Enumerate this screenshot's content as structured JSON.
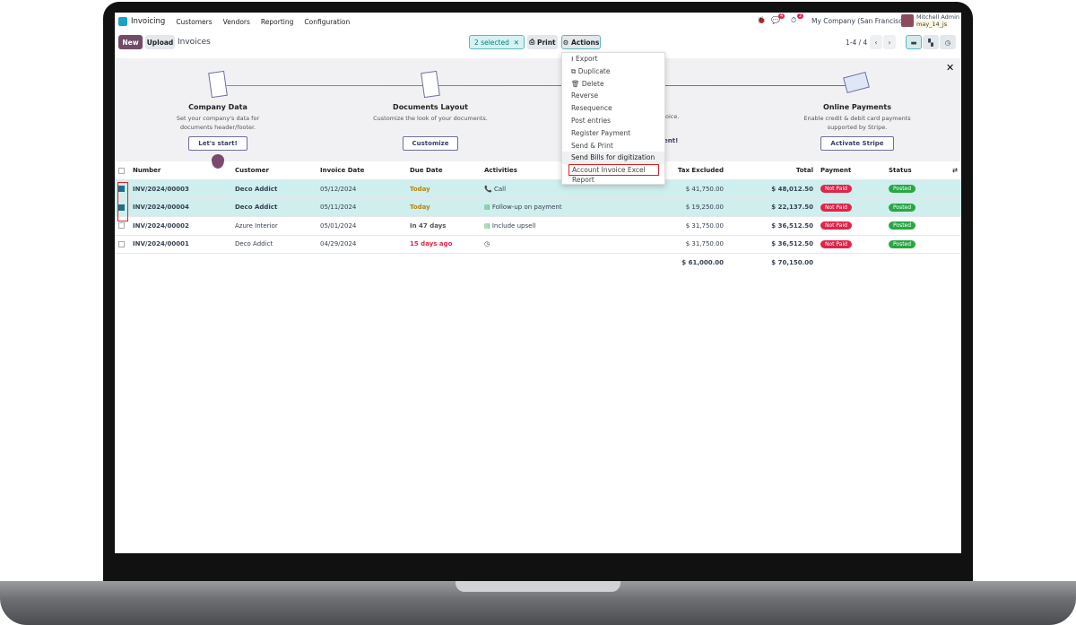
{
  "nav": {
    "app": "Invoicing",
    "menu": [
      "Customers",
      "Vendors",
      "Reporting",
      "Configuration"
    ],
    "company": "My Company (San Francisco)",
    "user": "Mitchell Admin",
    "db": "may_14_js",
    "messages_badge": "4",
    "activities_badge": "2"
  },
  "control": {
    "new": "New",
    "upload": "Upload",
    "title": "Invoices",
    "selected": "2 selected",
    "print": "Print",
    "actions": "Actions",
    "pager": "1-4 / 4"
  },
  "actions_menu": [
    "Export",
    "Duplicate",
    "Delete",
    "Reverse",
    "Resequence",
    "Post entries",
    "Register Payment",
    "Send & Print",
    "Send Bills for digitization",
    "Account Invoice Excel Report"
  ],
  "onboarding": {
    "steps": [
      {
        "title": "Company Data",
        "desc": "Set your company's data for documents header/footer.",
        "button": "Let's start!"
      },
      {
        "title": "Documents Layout",
        "desc": "Customize the look of your documents.",
        "button": "Customize"
      },
      {
        "title": "e",
        "desc": "oice.",
        "button": "ent!"
      },
      {
        "title": "Online Payments",
        "desc": "Enable credit & debit card payments supported by Stripe.",
        "button": "Activate Stripe"
      }
    ]
  },
  "table": {
    "headers": [
      "Number",
      "Customer",
      "Invoice Date",
      "Due Date",
      "Activities",
      "Tax Excluded",
      "Total",
      "Payment",
      "Status"
    ],
    "rows": [
      {
        "number": "INV/2024/00003",
        "customer": "Deco Addict",
        "date": "05/12/2024",
        "due": "Today",
        "activity": "Call",
        "tax": "$ 41,750.00",
        "total": "$ 48,012.50",
        "payment": "Not Paid",
        "status": "Posted",
        "selected": true
      },
      {
        "number": "INV/2024/00004",
        "customer": "Deco Addict",
        "date": "05/11/2024",
        "due": "Today",
        "activity": "Follow-up on payment",
        "tax": "$ 19,250.00",
        "total": "$ 22,137.50",
        "payment": "Not Paid",
        "status": "Posted",
        "selected": true
      },
      {
        "number": "INV/2024/00002",
        "customer": "Azure Interior",
        "date": "05/01/2024",
        "due": "In 47 days",
        "activity": "Include upsell",
        "tax": "$ 31,750.00",
        "total": "$ 36,512.50",
        "payment": "Not Paid",
        "status": "Posted",
        "selected": false
      },
      {
        "number": "INV/2024/00001",
        "customer": "Deco Addict",
        "date": "04/29/2024",
        "due": "15 days ago",
        "activity": "",
        "tax": "$ 31,750.00",
        "total": "$ 36,512.50",
        "payment": "Not Paid",
        "status": "Posted",
        "selected": false
      }
    ],
    "totals": {
      "tax": "$ 61,000.00",
      "total": "$ 70,150.00"
    }
  },
  "colors": {
    "brand": "#714b67",
    "teal": "#017e84",
    "danger": "#e0244a",
    "success": "#28a745",
    "highlight": "#e02020"
  }
}
